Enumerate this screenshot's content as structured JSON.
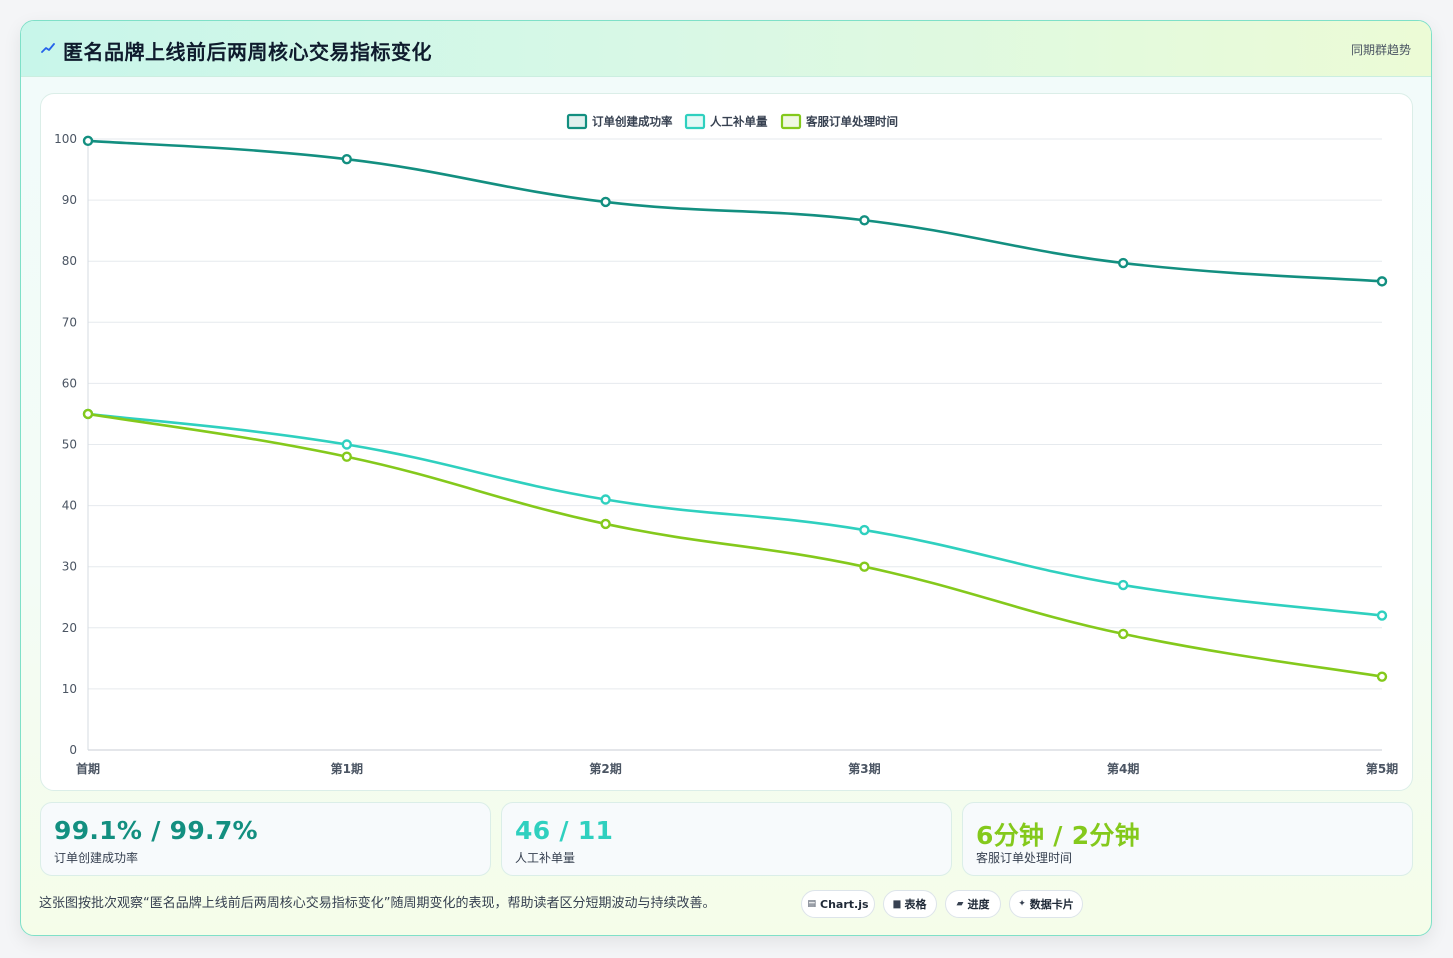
{
  "header": {
    "title": "匿名品牌上线前后两周核心交易指标变化",
    "tag": "同期群趋势",
    "icon": "chart-line-icon"
  },
  "chart_data": {
    "type": "line",
    "categories": [
      "首期",
      "第1期",
      "第2期",
      "第3期",
      "第4期",
      "第5期"
    ],
    "series": [
      {
        "name": "订单创建成功率",
        "color": "#138f80",
        "values": [
          99.7,
          96.7,
          89.7,
          86.7,
          79.7,
          76.7
        ]
      },
      {
        "name": "人工补单量",
        "color": "#2fd0bf",
        "values": [
          55,
          50,
          41,
          36,
          27,
          22
        ]
      },
      {
        "name": "客服订单处理时间",
        "color": "#84c91c",
        "values": [
          55,
          48,
          37,
          30,
          19,
          12
        ]
      }
    ],
    "ylim": [
      0,
      100
    ],
    "yticks": [
      0,
      10,
      20,
      30,
      40,
      50,
      60,
      70,
      80,
      90,
      100
    ],
    "grid": true,
    "legend_position": "top-center",
    "title": "",
    "xlabel": "",
    "ylabel": ""
  },
  "metrics": [
    {
      "value": "99.1% / 99.7%",
      "label": "订单创建成功率",
      "color": "#138f80"
    },
    {
      "value": "46 / 11",
      "label": "人工补单量",
      "color": "#2fd0bf"
    },
    {
      "value": "6分钟 / 2分钟",
      "label": "客服订单处理时间",
      "color": "#84c91c"
    }
  ],
  "footer": {
    "caption": "这张图按批次观察“匿名品牌上线前后两周核心交易指标变化”随周期变化的表现，帮助读者区分短期波动与持续改善。",
    "pills": [
      {
        "label": "Chart.js",
        "icon": "▤"
      },
      {
        "label": "表格",
        "icon": "▆"
      },
      {
        "label": "进度",
        "icon": "▰"
      },
      {
        "label": "数据卡片",
        "icon": "✦"
      }
    ]
  }
}
